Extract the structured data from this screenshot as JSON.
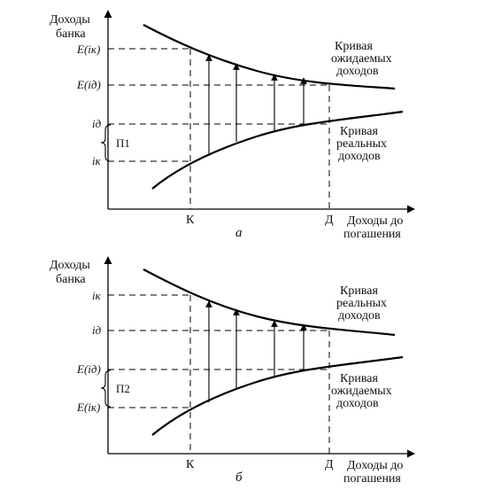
{
  "panel_a": {
    "y_title_line1": "Доходы",
    "y_title_line2": "банка",
    "x_title_line1": "Доходы до",
    "x_title_line2": "погашения",
    "upper_curve_line1": "Кривая",
    "upper_curve_line2": "ожидаемых",
    "upper_curve_line3": "доходов",
    "lower_curve_line1": "Кривая",
    "lower_curve_line2": "реальных",
    "lower_curve_line3": "доходов",
    "y_tick_1": "E(iк)",
    "y_tick_2": "E(iд)",
    "y_tick_3": "iд",
    "y_tick_4": "iк",
    "brace_label": "П1",
    "x_tick_k": "К",
    "x_tick_d": "Д",
    "caption": "а"
  },
  "panel_b": {
    "y_title_line1": "Доходы",
    "y_title_line2": "банка",
    "x_title_line1": "Доходы до",
    "x_title_line2": "погашения",
    "upper_curve_line1": "Кривая",
    "upper_curve_line2": "реальных",
    "upper_curve_line3": "доходов",
    "lower_curve_line1": "Кривая",
    "lower_curve_line2": "ожидаемых",
    "lower_curve_line3": "доходов",
    "y_tick_1": "iк",
    "y_tick_2": "iд",
    "y_tick_3": "E(iд)",
    "y_tick_4": "E(iк)",
    "brace_label": "П2",
    "x_tick_k": "К",
    "x_tick_d": "Д",
    "caption": "б"
  }
}
